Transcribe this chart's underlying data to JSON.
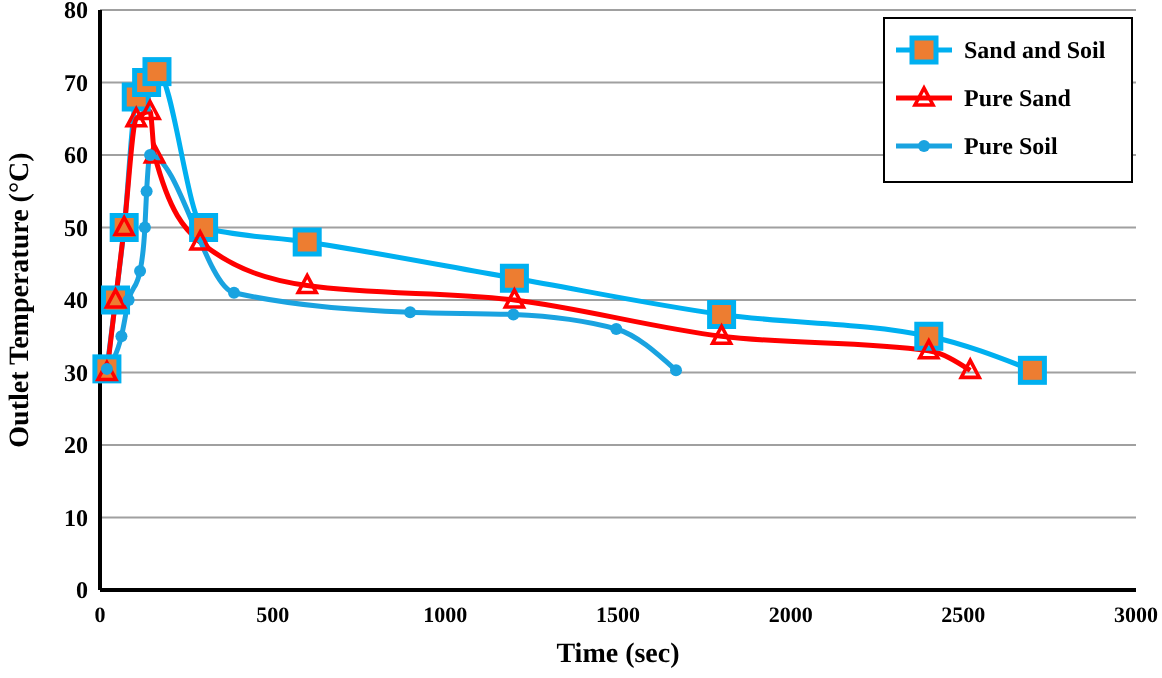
{
  "chart_data": {
    "type": "line",
    "xlabel": "Time (sec)",
    "ylabel": "Outlet Temperature (°C)",
    "xlim": [
      0,
      3000
    ],
    "xticks": [
      0,
      500,
      1000,
      1500,
      2000,
      2500,
      3000
    ],
    "ylim": [
      0,
      80
    ],
    "yticks": [
      0,
      10,
      20,
      30,
      40,
      50,
      60,
      70,
      80
    ],
    "grid": "y",
    "legend": "top right",
    "line_style": "solid",
    "series": [
      {
        "name": "Sand and Soil",
        "color": "#00b0f0",
        "marker": "square",
        "x": [
          20,
          45,
          70,
          105,
          135,
          165,
          300,
          600,
          1200,
          1800,
          2400,
          2700
        ],
        "values": [
          30.5,
          40,
          50,
          68,
          70,
          71.5,
          50,
          48,
          43,
          38,
          35,
          30.3
        ]
      },
      {
        "name": "Pure Sand",
        "color": "#ff0000",
        "marker": "triangle",
        "x": [
          20,
          45,
          70,
          105,
          145,
          158,
          290,
          600,
          1200,
          1800,
          2400,
          2520
        ],
        "values": [
          30,
          40,
          50,
          65,
          66,
          60,
          48,
          42,
          40,
          35,
          33,
          30.3
        ]
      },
      {
        "name": "Pure Soil",
        "color": "#1aa3e0",
        "marker": "circle",
        "x": [
          20,
          62,
          83,
          116,
          130,
          135,
          145,
          388,
          898,
          1197,
          1495,
          1668
        ],
        "values": [
          30.5,
          35,
          40,
          44,
          50,
          55,
          60,
          41,
          38.3,
          38,
          36,
          30.3
        ]
      }
    ]
  }
}
